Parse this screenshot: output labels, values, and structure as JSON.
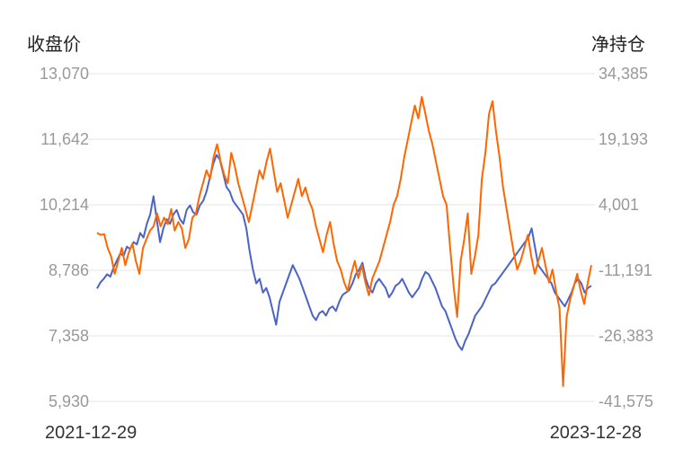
{
  "chart_data": {
    "type": "line",
    "left_axis_title": "收盘价",
    "right_axis_title": "净持仓",
    "left_ticks": [
      "13,070",
      "11,642",
      "10,214",
      "8,786",
      "7,358",
      "5,930"
    ],
    "right_ticks": [
      "34,385",
      "19,193",
      "4,001",
      "-11,191",
      "-26,383",
      "-41,575"
    ],
    "left_ylim": [
      5930,
      13070
    ],
    "right_ylim": [
      -41575,
      34385
    ],
    "x_start_label": "2021-12-29",
    "x_end_label": "2023-12-28",
    "grid": true,
    "series": [
      {
        "axis": "left",
        "color": "#4a63c8",
        "values": [
          8390,
          8520,
          8600,
          8700,
          8650,
          8850,
          9000,
          9150,
          9100,
          9300,
          9250,
          9400,
          9350,
          9600,
          9500,
          9800,
          10000,
          10400,
          9900,
          9400,
          9700,
          9900,
          9800,
          10000,
          10100,
          9900,
          9800,
          10100,
          10200,
          10050,
          10000,
          10200,
          10300,
          10500,
          10800,
          11100,
          11300,
          11200,
          10900,
          10600,
          10500,
          10300,
          10200,
          10100,
          10000,
          9700,
          9200,
          8800,
          8500,
          8600,
          8300,
          8400,
          8200,
          7900,
          7600,
          8100,
          8300,
          8500,
          8700,
          8900,
          8750,
          8600,
          8400,
          8200,
          8000,
          7800,
          7700,
          7850,
          7900,
          7800,
          7950,
          8000,
          7900,
          8100,
          8250,
          8300,
          8350,
          8500,
          8700,
          8800,
          8950,
          8600,
          8400,
          8300,
          8500,
          8600,
          8500,
          8400,
          8200,
          8300,
          8450,
          8500,
          8600,
          8450,
          8300,
          8200,
          8300,
          8400,
          8600,
          8750,
          8700,
          8550,
          8400,
          8200,
          8000,
          7900,
          7700,
          7500,
          7300,
          7150,
          7050,
          7250,
          7400,
          7600,
          7800,
          7900,
          8000,
          8150,
          8300,
          8450,
          8500,
          8600,
          8700,
          8800,
          8900,
          9000,
          9100,
          9200,
          9300,
          9400,
          9500,
          9700,
          9300,
          8900,
          8800,
          8700,
          8600,
          8500,
          8300,
          8200,
          8100,
          8000,
          8150,
          8300,
          8500,
          8600,
          8500,
          8300,
          8400,
          8450
        ]
      },
      {
        "axis": "right",
        "color": "#ff6600",
        "values": [
          -2500,
          -3000,
          -2800,
          -6000,
          -8000,
          -12000,
          -9000,
          -6000,
          -10000,
          -7000,
          -5000,
          -9000,
          -12000,
          -6000,
          -4000,
          -2000,
          -1000,
          2000,
          -1000,
          1000,
          -500,
          3000,
          -2000,
          0,
          -1500,
          -6000,
          -4000,
          1000,
          2000,
          6000,
          9000,
          12000,
          10000,
          15000,
          18000,
          14000,
          11000,
          9000,
          16000,
          13000,
          9000,
          6000,
          3000,
          0,
          4000,
          8000,
          12000,
          10000,
          14000,
          17000,
          12000,
          7000,
          9000,
          5000,
          1000,
          4000,
          7000,
          10000,
          6000,
          8000,
          5000,
          3000,
          -1000,
          -4000,
          -7000,
          -3000,
          0,
          -5000,
          -9000,
          -11000,
          -14000,
          -16000,
          -12000,
          -9000,
          -13000,
          -10000,
          -14000,
          -17000,
          -13000,
          -11000,
          -9000,
          -6000,
          -3000,
          0,
          4000,
          6000,
          10000,
          15000,
          19000,
          23000,
          27000,
          24000,
          29000,
          25000,
          21000,
          18000,
          14000,
          10000,
          6000,
          4000,
          -6000,
          -15000,
          -22000,
          -9000,
          -4000,
          2000,
          -12000,
          -8000,
          -3000,
          10000,
          16000,
          25000,
          28000,
          21000,
          15000,
          8000,
          3000,
          -2000,
          -7000,
          -11000,
          -9000,
          -6000,
          -3000,
          -8000,
          -12000,
          -9000,
          -6000,
          -10000,
          -14000,
          -11000,
          -16000,
          -20000,
          -38000,
          -22000,
          -18000,
          -15000,
          -12000,
          -16000,
          -19000,
          -14000,
          -10000
        ]
      }
    ]
  }
}
